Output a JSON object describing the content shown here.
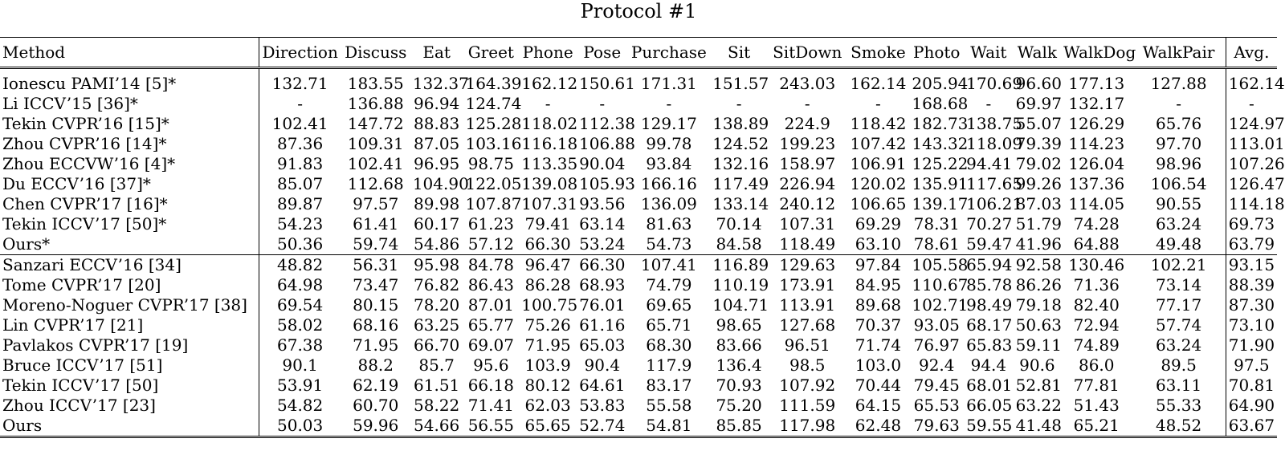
{
  "caption": "Protocol #1",
  "columns": [
    "Method",
    "Direction",
    "Discuss",
    "Eat",
    "Greet",
    "Phone",
    "Pose",
    "Purchase",
    "Sit",
    "SitDown",
    "Smoke",
    "Photo",
    "Wait",
    "Walk",
    "WalkDog",
    "WalkPair",
    "Avg."
  ],
  "rows": [
    {
      "method": "Ionescu PAMI’14 [5]*",
      "values": [
        "132.71",
        "183.55",
        "132.37",
        "164.39",
        "162.12",
        "150.61",
        "171.31",
        "151.57",
        "243.03",
        "162.14",
        "205.94",
        "170.69",
        "96.60",
        "177.13",
        "127.88",
        "162.14"
      ],
      "bold": []
    },
    {
      "method": "Li ICCV’15 [36]*",
      "values": [
        "-",
        "136.88",
        "96.94",
        "124.74",
        "-",
        "-",
        "-",
        "-",
        "-",
        "-",
        "168.68",
        "-",
        "69.97",
        "132.17",
        "-",
        "-"
      ],
      "bold": []
    },
    {
      "method": "Tekin CVPR’16 [15]*",
      "values": [
        "102.41",
        "147.72",
        "88.83",
        "125.28",
        "118.02",
        "112.38",
        "129.17",
        "138.89",
        "224.9",
        "118.42",
        "182.73",
        "138.75",
        "55.07",
        "126.29",
        "65.76",
        "124.97"
      ],
      "bold": []
    },
    {
      "method": "Zhou CVPR’16 [14]*",
      "values": [
        "87.36",
        "109.31",
        "87.05",
        "103.16",
        "116.18",
        "106.88",
        "99.78",
        "124.52",
        "199.23",
        "107.42",
        "143.32",
        "118.09",
        "79.39",
        "114.23",
        "97.70",
        "113.01"
      ],
      "bold": []
    },
    {
      "method": "Zhou ECCVW’16 [4]*",
      "values": [
        "91.83",
        "102.41",
        "96.95",
        "98.75",
        "113.35",
        "90.04",
        "93.84",
        "132.16",
        "158.97",
        "106.91",
        "125.22",
        "94.41",
        "79.02",
        "126.04",
        "98.96",
        "107.26"
      ],
      "bold": []
    },
    {
      "method": "Du ECCV’16 [37]*",
      "values": [
        "85.07",
        "112.68",
        "104.90",
        "122.05",
        "139.08",
        "105.93",
        "166.16",
        "117.49",
        "226.94",
        "120.02",
        "135.91",
        "117.65",
        "99.26",
        "137.36",
        "106.54",
        "126.47"
      ],
      "bold": []
    },
    {
      "method": "Chen CVPR’17 [16]*",
      "values": [
        "89.87",
        "97.57",
        "89.98",
        "107.87",
        "107.31",
        "93.56",
        "136.09",
        "133.14",
        "240.12",
        "106.65",
        "139.17",
        "106.21",
        "87.03",
        "114.05",
        "90.55",
        "114.18"
      ],
      "bold": []
    },
    {
      "method": "Tekin ICCV’17 [50]*",
      "values": [
        "54.23",
        "61.41",
        "60.17",
        "61.23",
        "79.41",
        "63.14",
        "81.63",
        "70.14",
        "107.31",
        "69.29",
        "78.31",
        "70.27",
        "51.79",
        "74.28",
        "63.24",
        "69.73"
      ],
      "bold": [
        8,
        10
      ]
    },
    {
      "method": "Ours*",
      "values": [
        "50.36",
        "59.74",
        "54.86",
        "57.12",
        "66.30",
        "53.24",
        "54.73",
        "84.58",
        "118.49",
        "63.10",
        "78.61",
        "59.47",
        "41.96",
        "64.88",
        "49.48",
        "63.79"
      ],
      "bold": [
        -1,
        0,
        1,
        2,
        3,
        4,
        5,
        6,
        7,
        9,
        11,
        12,
        13,
        14,
        15
      ]
    },
    {
      "method": "Sanzari ECCV’16 [34]",
      "values": [
        "48.82",
        "56.31",
        "95.98",
        "84.78",
        "96.47",
        "66.30",
        "107.41",
        "116.89",
        "129.63",
        "97.84",
        "105.58",
        "65.94",
        "92.58",
        "130.46",
        "102.21",
        "93.15"
      ],
      "bold": [
        0,
        1
      ]
    },
    {
      "method": "Tome CVPR’17 [20]",
      "values": [
        "64.98",
        "73.47",
        "76.82",
        "86.43",
        "86.28",
        "68.93",
        "74.79",
        "110.19",
        "173.91",
        "84.95",
        "110.67",
        "85.78",
        "86.26",
        "71.36",
        "73.14",
        "88.39"
      ],
      "bold": []
    },
    {
      "method": "Moreno-Noguer CVPR’17 [38]",
      "values": [
        "69.54",
        "80.15",
        "78.20",
        "87.01",
        "100.75",
        "76.01",
        "69.65",
        "104.71",
        "113.91",
        "89.68",
        "102.71",
        "98.49",
        "79.18",
        "82.40",
        "77.17",
        "87.30"
      ],
      "bold": []
    },
    {
      "method": "Lin CVPR’17 [21]",
      "values": [
        "58.02",
        "68.16",
        "63.25",
        "65.77",
        "75.26",
        "61.16",
        "65.71",
        "98.65",
        "127.68",
        "70.37",
        "93.05",
        "68.17",
        "50.63",
        "72.94",
        "57.74",
        "73.10"
      ],
      "bold": []
    },
    {
      "method": "Pavlakos CVPR’17 [19]",
      "values": [
        "67.38",
        "71.95",
        "66.70",
        "69.07",
        "71.95",
        "65.03",
        "68.30",
        "83.66",
        "96.51",
        "71.74",
        "76.97",
        "65.83",
        "59.11",
        "74.89",
        "63.24",
        "71.90"
      ],
      "bold": [
        8
      ]
    },
    {
      "method": "Bruce ICCV’17 [51]",
      "values": [
        "90.1",
        "88.2",
        "85.7",
        "95.6",
        "103.9",
        "90.4",
        "117.9",
        "136.4",
        "98.5",
        "103.0",
        "92.4",
        "94.4",
        "90.6",
        "86.0",
        "89.5",
        "97.5"
      ],
      "bold": []
    },
    {
      "method": "Tekin ICCV’17 [50]",
      "values": [
        "53.91",
        "62.19",
        "61.51",
        "66.18",
        "80.12",
        "64.61",
        "83.17",
        "70.93",
        "107.92",
        "70.44",
        "79.45",
        "68.01",
        "52.81",
        "77.81",
        "63.11",
        "70.81"
      ],
      "bold": [
        7
      ]
    },
    {
      "method": "Zhou ICCV’17 [23]",
      "values": [
        "54.82",
        "60.70",
        "58.22",
        "71.41",
        "62.03",
        "53.83",
        "55.58",
        "75.20",
        "111.59",
        "64.15",
        "65.53",
        "66.05",
        "63.22",
        "51.43",
        "55.33",
        "64.90"
      ],
      "bold": [
        4,
        10,
        13
      ]
    },
    {
      "method": "Ours",
      "values": [
        "50.03",
        "59.96",
        "54.66",
        "56.55",
        "65.65",
        "52.74",
        "54.81",
        "85.85",
        "117.98",
        "62.48",
        "79.63",
        "59.55",
        "41.48",
        "65.21",
        "48.52",
        "63.67"
      ],
      "bold": [
        -1,
        2,
        3,
        5,
        6,
        9,
        11,
        12,
        14,
        15
      ]
    }
  ]
}
